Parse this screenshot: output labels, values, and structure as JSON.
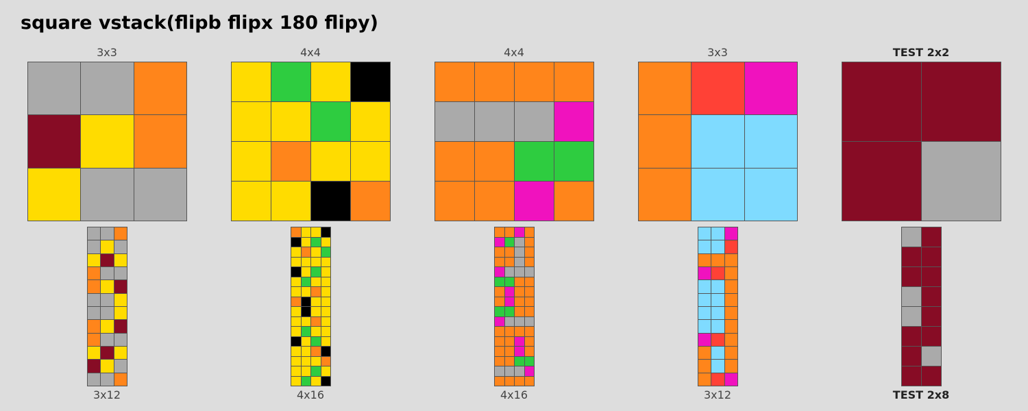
{
  "title": "square vstack(flipb flipx 180 flipy)",
  "palette": {
    "0": "#000000",
    "2": "#2ECC40",
    "4": "#FFDC00",
    "5": "#AAAAAA",
    "6": "#F012BE",
    "7": "#FF851B",
    "8": "#7FDBFF",
    "9": "#870C25",
    "r": "#FF4136"
  },
  "pairs": [
    {
      "input_label": "3x3",
      "output_label": "3x12",
      "is_test": false,
      "input": [
        "557",
        "947",
        "455"
      ],
      "output": [
        "557",
        "545",
        "494",
        "755",
        "749",
        "554",
        "554",
        "749",
        "755",
        "494",
        "945",
        "557"
      ]
    },
    {
      "input_label": "4x4",
      "output_label": "4x16",
      "is_test": false,
      "input": [
        "4240",
        "4424",
        "4744",
        "4407"
      ],
      "output": [
        "7440",
        "0424",
        "4742",
        "4444",
        "0424",
        "4244",
        "4474",
        "7044",
        "4044",
        "4474",
        "4244",
        "0424",
        "4470",
        "4447",
        "4424",
        "4240"
      ]
    },
    {
      "input_label": "4x4",
      "output_label": "4x16",
      "is_test": false,
      "input": [
        "7777",
        "5556",
        "7722",
        "7767"
      ],
      "output": [
        "7767",
        "6257",
        "7757",
        "7757",
        "6555",
        "2277",
        "7677",
        "7677",
        "2277",
        "6555",
        "7777",
        "7767",
        "7767",
        "7722",
        "5556",
        "7777"
      ]
    },
    {
      "input_label": "3x3",
      "output_label": "3x12",
      "is_test": false,
      "input": [
        "7r6",
        "788",
        "788"
      ],
      "output": [
        "886",
        "88r",
        "777",
        "6r7",
        "887",
        "887",
        "887",
        "887",
        "6r7",
        "787",
        "787",
        "7r6"
      ]
    },
    {
      "input_label": "TEST 2x2",
      "output_label": "TEST 2x8",
      "is_test": true,
      "input": [
        "99",
        "95"
      ],
      "output": [
        "59",
        "99",
        "99",
        "59",
        "59",
        "99",
        "95",
        "99"
      ]
    }
  ]
}
